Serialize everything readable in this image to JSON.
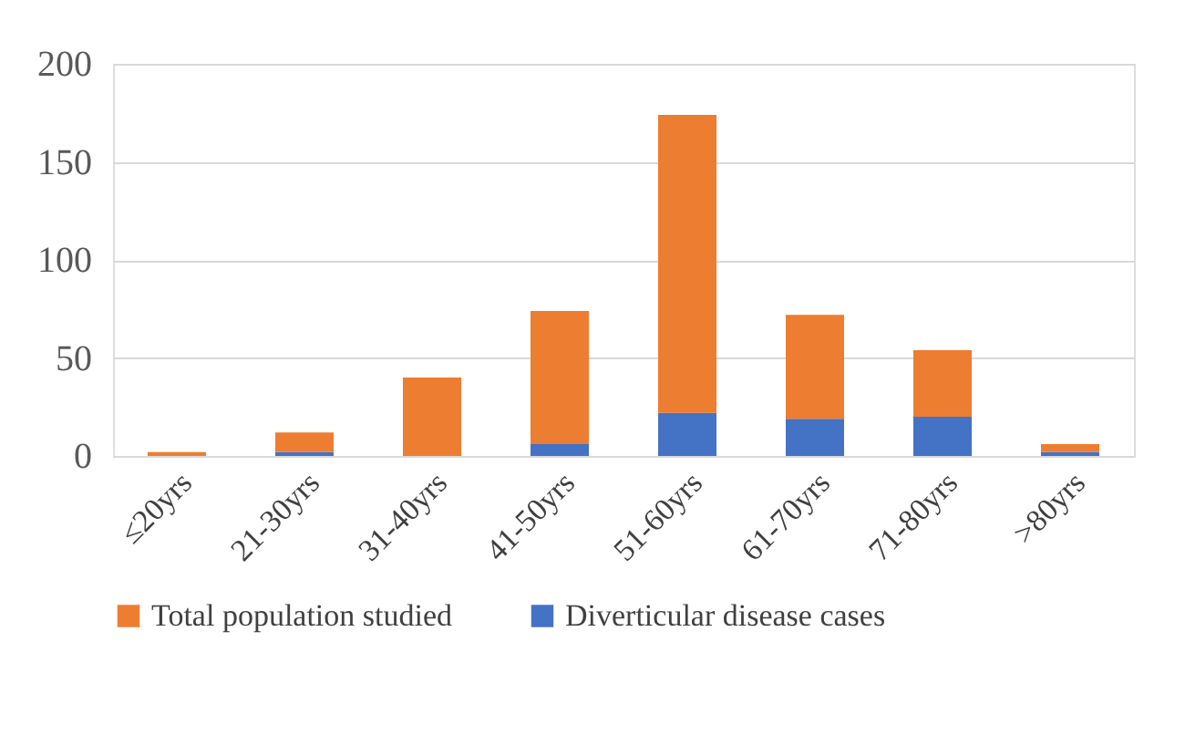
{
  "chart_data": {
    "type": "bar",
    "stacked": true,
    "categories": [
      "≤20yrs",
      "21-30yrs",
      "31-40yrs",
      "41-50yrs",
      "51-60yrs",
      "61-70yrs",
      "71-80yrs",
      ">80yrs"
    ],
    "series": [
      {
        "name": "Diverticular disease cases",
        "color": "#4472c4",
        "values": [
          0,
          2,
          0,
          6,
          22,
          19,
          20,
          2
        ]
      },
      {
        "name": "Total population studied",
        "color": "#ed7d31",
        "values": [
          2,
          10,
          40,
          68,
          152,
          53,
          34,
          4
        ]
      }
    ],
    "ylim": [
      0,
      200
    ],
    "yticks": [
      0,
      50,
      100,
      150,
      200
    ],
    "grid": "y",
    "legend": "bottom"
  }
}
